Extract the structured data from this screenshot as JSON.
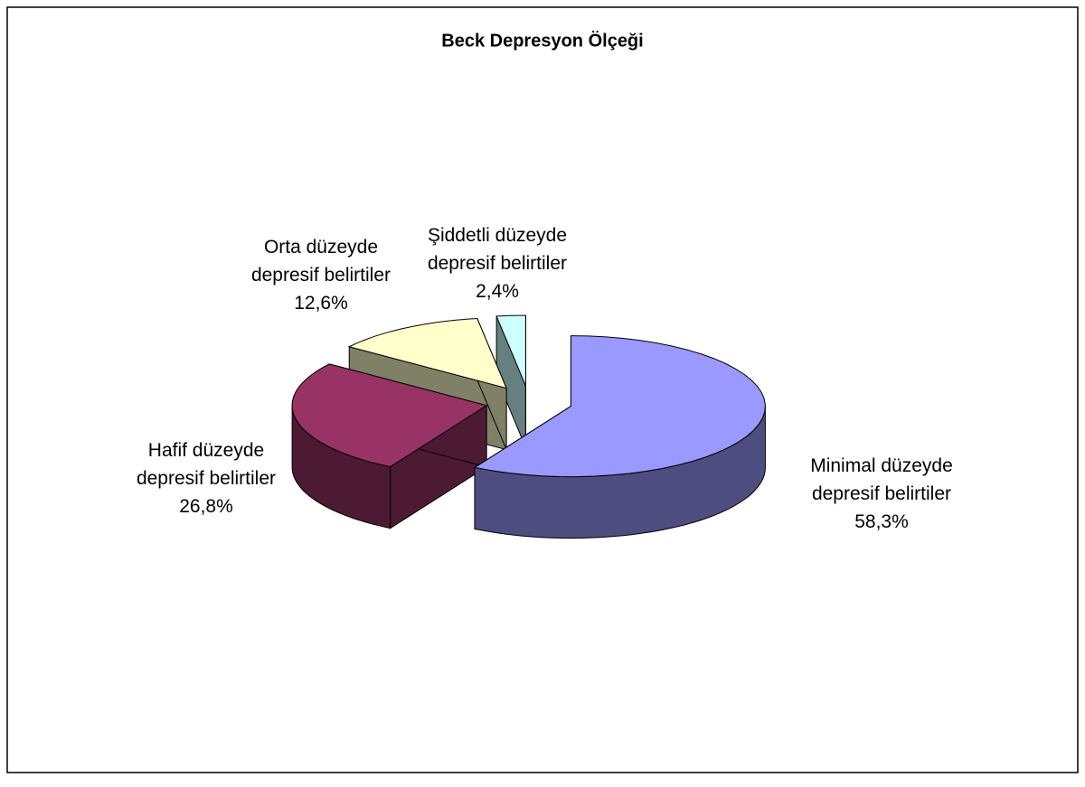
{
  "chart_data": {
    "type": "pie3d",
    "title": "Beck Depresyon Ölçeği",
    "categories": [
      "Minimal düzeyde depresif belirtiler",
      "Hafif düzeyde depresif belirtiler",
      "Orta düzeyde depresif belirtiler",
      "Şiddetli düzeyde depresif belirtiler"
    ],
    "values": [
      58.3,
      26.8,
      12.6,
      2.4
    ],
    "value_labels": [
      "58,3%",
      "26,8%",
      "12,6%",
      "2,4%"
    ],
    "colors": [
      "#9999ff",
      "#993366",
      "#ffffcc",
      "#ccffff"
    ]
  }
}
